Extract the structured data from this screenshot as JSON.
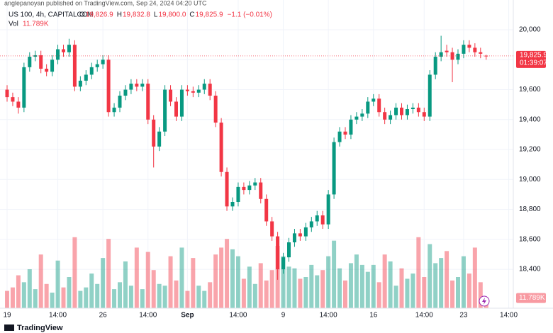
{
  "chart_data": {
    "type": "candlestick",
    "attribution": "anglepanoyan published on TradingView.com, Sep 24, 2024 04:20 UTC",
    "symbol": "US 100, 4h, CAPITALCOM",
    "legend": [
      {
        "key": "O",
        "value": "19,826.9"
      },
      {
        "key": "H",
        "value": "19,832.8"
      },
      {
        "key": "L",
        "value": "19,800.0"
      },
      {
        "key": "C",
        "value": "19,825.9"
      },
      {
        "key": "",
        "value": "−1.1 (−0.01%)"
      }
    ],
    "volume_legend": {
      "key": "Vol",
      "value": "11.789K"
    },
    "last_price_label": "19,825.9",
    "countdown": "01:39:07",
    "last_volume_label": "11.789K",
    "logo": "TradingView",
    "up_color": "#089981",
    "down_color": "#f23645",
    "categories": [
      "19",
      null,
      null,
      null,
      null,
      null,
      null,
      null,
      null,
      "14:00",
      null,
      null,
      null,
      null,
      null,
      null,
      null,
      "26",
      null,
      null,
      null,
      null,
      null,
      null,
      null,
      "14:00",
      null,
      null,
      null,
      null,
      null,
      null,
      "Sep",
      null,
      null,
      null,
      null,
      null,
      null,
      null,
      null,
      "14:00",
      null,
      null,
      null,
      null,
      null,
      null,
      null,
      "9",
      null,
      null,
      null,
      null,
      null,
      null,
      null,
      "14:00",
      null,
      null,
      null,
      null,
      null,
      null,
      null,
      "16",
      null,
      null,
      null,
      null,
      null,
      null,
      null,
      null,
      "14:00",
      null,
      null,
      null,
      null,
      null,
      null,
      "23",
      null,
      null,
      null,
      null,
      null,
      null,
      null,
      "14:00"
    ],
    "open": [
      19600,
      19550,
      19520,
      19480,
      19750,
      19820,
      19830,
      19740,
      19720,
      19800,
      19870,
      19850,
      19900,
      19620,
      19660,
      19700,
      19750,
      19770,
      19800,
      19450,
      19480,
      19560,
      19600,
      19640,
      19620,
      19640,
      19400,
      19220,
      19320,
      19600,
      19520,
      19420,
      19600,
      19590,
      19580,
      19600,
      19640,
      19560,
      19380,
      19050,
      18820,
      18850,
      18950,
      18930,
      18960,
      18980,
      18870,
      18720,
      18620,
      18400,
      18480,
      18580,
      18640,
      18620,
      18680,
      18720,
      18760,
      18700,
      18900,
      19250,
      19320,
      19300,
      19400,
      19420,
      19440,
      19520,
      19540,
      19450,
      19400,
      19430,
      19480,
      19430,
      19470,
      19480,
      19450,
      19420,
      19700,
      19820,
      19860,
      19850,
      19800,
      19840,
      19900,
      19880,
      19850,
      19826.9,
      null,
      null,
      null,
      null
    ],
    "high": [
      19630,
      19580,
      19550,
      19780,
      19850,
      19860,
      19860,
      19770,
      19830,
      19900,
      19900,
      19940,
      19930,
      19690,
      19730,
      19780,
      19800,
      19830,
      19830,
      19510,
      19590,
      19630,
      19670,
      19670,
      19670,
      19670,
      19430,
      19350,
      19630,
      19630,
      19550,
      19630,
      19630,
      19620,
      19630,
      19670,
      19670,
      19590,
      19410,
      19080,
      18880,
      18980,
      18980,
      18990,
      19010,
      19010,
      18900,
      18750,
      18650,
      18510,
      18610,
      18670,
      18670,
      18710,
      18750,
      18790,
      18790,
      18930,
      19280,
      19350,
      19350,
      19430,
      19450,
      19470,
      19550,
      19570,
      19570,
      19480,
      19460,
      19510,
      19510,
      19500,
      19510,
      19510,
      19480,
      19730,
      19850,
      19960,
      19900,
      19880,
      19870,
      19930,
      19930,
      19910,
      19880,
      19832.8,
      null,
      null,
      null,
      null
    ],
    "low": [
      19520,
      19490,
      19440,
      19450,
      19720,
      19790,
      19710,
      19690,
      19690,
      19770,
      19820,
      19820,
      19590,
      19590,
      19630,
      19670,
      19720,
      19740,
      19420,
      19420,
      19450,
      19530,
      19570,
      19590,
      19590,
      19370,
      19080,
      19190,
      19290,
      19490,
      19390,
      19390,
      19560,
      19550,
      19550,
      19570,
      19530,
      19350,
      19020,
      18790,
      18790,
      18820,
      18900,
      18900,
      18930,
      18840,
      18690,
      18590,
      18330,
      18370,
      18450,
      18550,
      18590,
      18590,
      18650,
      18690,
      18670,
      18670,
      18870,
      19220,
      19270,
      19270,
      19370,
      19390,
      19410,
      19490,
      19420,
      19370,
      19370,
      19400,
      19400,
      19400,
      19440,
      19420,
      19390,
      19390,
      19670,
      19790,
      19820,
      19650,
      19770,
      19810,
      19850,
      19820,
      19810,
      19800,
      null,
      null,
      null,
      null
    ],
    "close": [
      19550,
      19520,
      19480,
      19750,
      19820,
      19830,
      19740,
      19720,
      19800,
      19870,
      19850,
      19900,
      19620,
      19660,
      19700,
      19750,
      19770,
      19800,
      19450,
      19480,
      19560,
      19600,
      19640,
      19620,
      19640,
      19400,
      19220,
      19320,
      19600,
      19520,
      19420,
      19600,
      19590,
      19580,
      19600,
      19640,
      19560,
      19380,
      19050,
      18820,
      18850,
      18950,
      18930,
      18960,
      18980,
      18870,
      18720,
      18620,
      18400,
      18480,
      18580,
      18640,
      18620,
      18680,
      18720,
      18760,
      18700,
      18900,
      19250,
      19320,
      19300,
      19400,
      19420,
      19440,
      19520,
      19540,
      19450,
      19400,
      19430,
      19480,
      19430,
      19470,
      19480,
      19450,
      19420,
      19700,
      19820,
      19850,
      19850,
      19800,
      19840,
      19900,
      19880,
      19850,
      19840,
      19825.9,
      null,
      null,
      null,
      null
    ],
    "volume": [
      20000,
      24000,
      38000,
      30000,
      45000,
      22000,
      62000,
      28000,
      18000,
      55000,
      24000,
      36000,
      82000,
      20000,
      24000,
      40000,
      28000,
      58000,
      80000,
      22000,
      30000,
      54000,
      26000,
      70000,
      22000,
      65000,
      44000,
      28000,
      26000,
      60000,
      32000,
      70000,
      20000,
      58000,
      26000,
      20000,
      30000,
      62000,
      70000,
      80000,
      68000,
      60000,
      34000,
      48000,
      28000,
      52000,
      32000,
      44000,
      72000,
      60000,
      48000,
      46000,
      34000,
      36000,
      50000,
      38000,
      44000,
      60000,
      78000,
      46000,
      32000,
      52000,
      62000,
      50000,
      42000,
      50000,
      30000,
      62000,
      54000,
      26000,
      46000,
      34000,
      40000,
      82000,
      36000,
      74000,
      52000,
      58000,
      66000,
      32000,
      36000,
      60000,
      40000,
      70000,
      30000,
      11789,
      null,
      null,
      null,
      null
    ],
    "vlim": [
      0,
      90000
    ],
    "ylim": [
      18140,
      20199
    ],
    "yticks": [
      {
        "value": 18400,
        "label": "18,400"
      },
      {
        "value": 18600,
        "label": "18,600"
      },
      {
        "value": 18800,
        "label": "18,800"
      },
      {
        "value": 19000,
        "label": "19,000"
      },
      {
        "value": 19200,
        "label": "19,200"
      },
      {
        "value": 19400,
        "label": "19,400"
      },
      {
        "value": 19600,
        "label": "19,600"
      },
      {
        "value": 19800,
        "label": "19,800"
      },
      {
        "value": 20000,
        "label": "20,000"
      }
    ],
    "grid": true
  }
}
